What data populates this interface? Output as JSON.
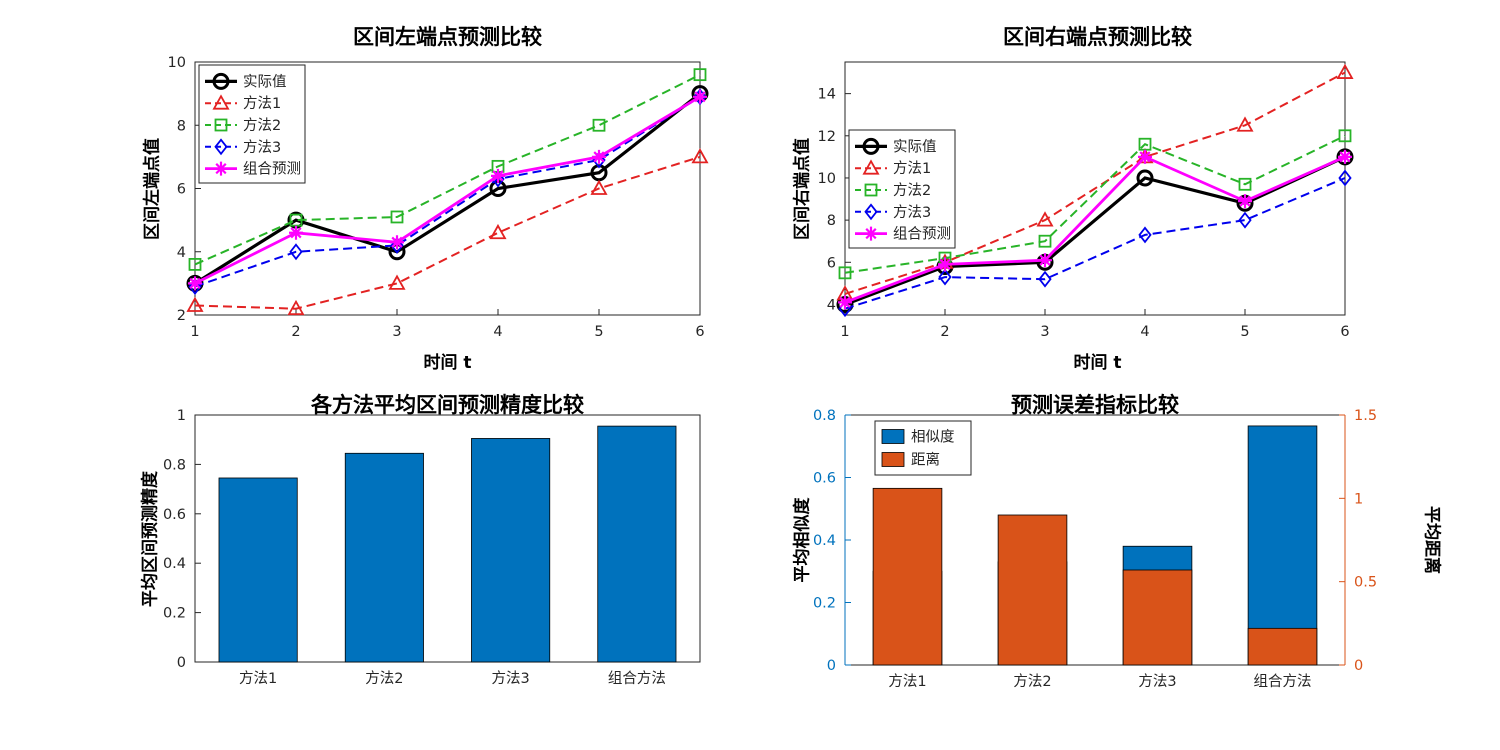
{
  "figure": {
    "background": "#ffffff"
  },
  "charts": [
    {
      "id": "left-endpoints",
      "type": "line",
      "title": "区间左端点预测比较",
      "xlabel": "时间 t",
      "ylabel": "区间左端点值",
      "xlim": [
        1,
        6
      ],
      "ylim": [
        2,
        10
      ],
      "xticks": [
        "1",
        "2",
        "3",
        "4",
        "5",
        "6"
      ],
      "yticks": [
        "2",
        "4",
        "6",
        "8",
        "10"
      ],
      "x": [
        1,
        2,
        3,
        4,
        5,
        6
      ],
      "legend_position": "upper-left",
      "series": [
        {
          "name": "实际值",
          "color": "#000000",
          "dash": "solid",
          "marker": "circle",
          "width": 3.2,
          "values": [
            3,
            5,
            4,
            6,
            6.5,
            9
          ]
        },
        {
          "name": "方法1",
          "color": "#e32222",
          "dash": "dashed",
          "marker": "triangle",
          "width": 2,
          "values": [
            2.3,
            2.2,
            3,
            4.6,
            6,
            7
          ]
        },
        {
          "name": "方法2",
          "color": "#28b428",
          "dash": "dashed",
          "marker": "square",
          "width": 2,
          "values": [
            3.6,
            5,
            5.1,
            6.7,
            8,
            9.6
          ]
        },
        {
          "name": "方法3",
          "color": "#0000ee",
          "dash": "dashed",
          "marker": "diamond",
          "width": 2,
          "values": [
            2.9,
            4,
            4.2,
            6.3,
            6.9,
            8.9
          ]
        },
        {
          "name": "组合预测",
          "color": "#ff00ff",
          "dash": "solid",
          "marker": "asterisk",
          "width": 2.8,
          "values": [
            3,
            4.6,
            4.3,
            6.4,
            7,
            8.9
          ]
        }
      ]
    },
    {
      "id": "right-endpoints",
      "type": "line",
      "title": "区间右端点预测比较",
      "xlabel": "时间 t",
      "ylabel": "区间右端点值",
      "xlim": [
        1,
        6
      ],
      "ylim": [
        3.5,
        15.5
      ],
      "xticks": [
        "1",
        "2",
        "3",
        "4",
        "5",
        "6"
      ],
      "yticks": [
        "4",
        "6",
        "8",
        "10",
        "12",
        "14"
      ],
      "x": [
        1,
        2,
        3,
        4,
        5,
        6
      ],
      "legend_position": "middle-left",
      "series": [
        {
          "name": "实际值",
          "color": "#000000",
          "dash": "solid",
          "marker": "circle",
          "width": 3.2,
          "values": [
            4,
            5.8,
            6,
            10,
            8.8,
            11
          ]
        },
        {
          "name": "方法1",
          "color": "#e32222",
          "dash": "dashed",
          "marker": "triangle",
          "width": 2,
          "values": [
            4.5,
            6,
            8,
            11,
            12.5,
            15
          ]
        },
        {
          "name": "方法2",
          "color": "#28b428",
          "dash": "dashed",
          "marker": "square",
          "width": 2,
          "values": [
            5.5,
            6.2,
            7,
            11.6,
            9.7,
            12
          ]
        },
        {
          "name": "方法3",
          "color": "#0000ee",
          "dash": "dashed",
          "marker": "diamond",
          "width": 2,
          "values": [
            3.8,
            5.3,
            5.2,
            7.3,
            8,
            10
          ]
        },
        {
          "name": "组合预测",
          "color": "#ff00ff",
          "dash": "solid",
          "marker": "asterisk",
          "width": 2.8,
          "values": [
            4.1,
            5.9,
            6.1,
            11,
            8.9,
            11
          ]
        }
      ]
    },
    {
      "id": "accuracy",
      "type": "bar",
      "title": "各方法平均区间预测精度比较",
      "ylabel": "平均区间预测精度",
      "categories": [
        "方法1",
        "方法2",
        "方法3",
        "组合方法"
      ],
      "values": [
        0.745,
        0.845,
        0.905,
        0.955
      ],
      "ylim": [
        0,
        1
      ],
      "yticks": [
        "0",
        "0.2",
        "0.4",
        "0.6",
        "0.8",
        "1"
      ],
      "bar_color": "#0072BD"
    },
    {
      "id": "error-metrics",
      "type": "dualbar",
      "title": "预测误差指标比较",
      "ylabel_left": "平均相似度",
      "ylabel_right": "平均距离",
      "categories": [
        "方法1",
        "方法2",
        "方法3",
        "组合方法"
      ],
      "ylim_left": [
        0,
        0.8
      ],
      "yticks_left": [
        "0",
        "0.2",
        "0.4",
        "0.6",
        "0.8"
      ],
      "ylim_right": [
        0,
        1.5
      ],
      "yticks_right": [
        "0",
        "0.5",
        "1",
        "1.5"
      ],
      "series": [
        {
          "name": "相似度",
          "color": "#0072BD",
          "axis": "left",
          "values": [
            0.3,
            0.33,
            0.38,
            0.765
          ]
        },
        {
          "name": "距离",
          "color": "#D95319",
          "axis": "right",
          "values": [
            1.06,
            0.9,
            0.57,
            0.22
          ]
        }
      ]
    }
  ]
}
